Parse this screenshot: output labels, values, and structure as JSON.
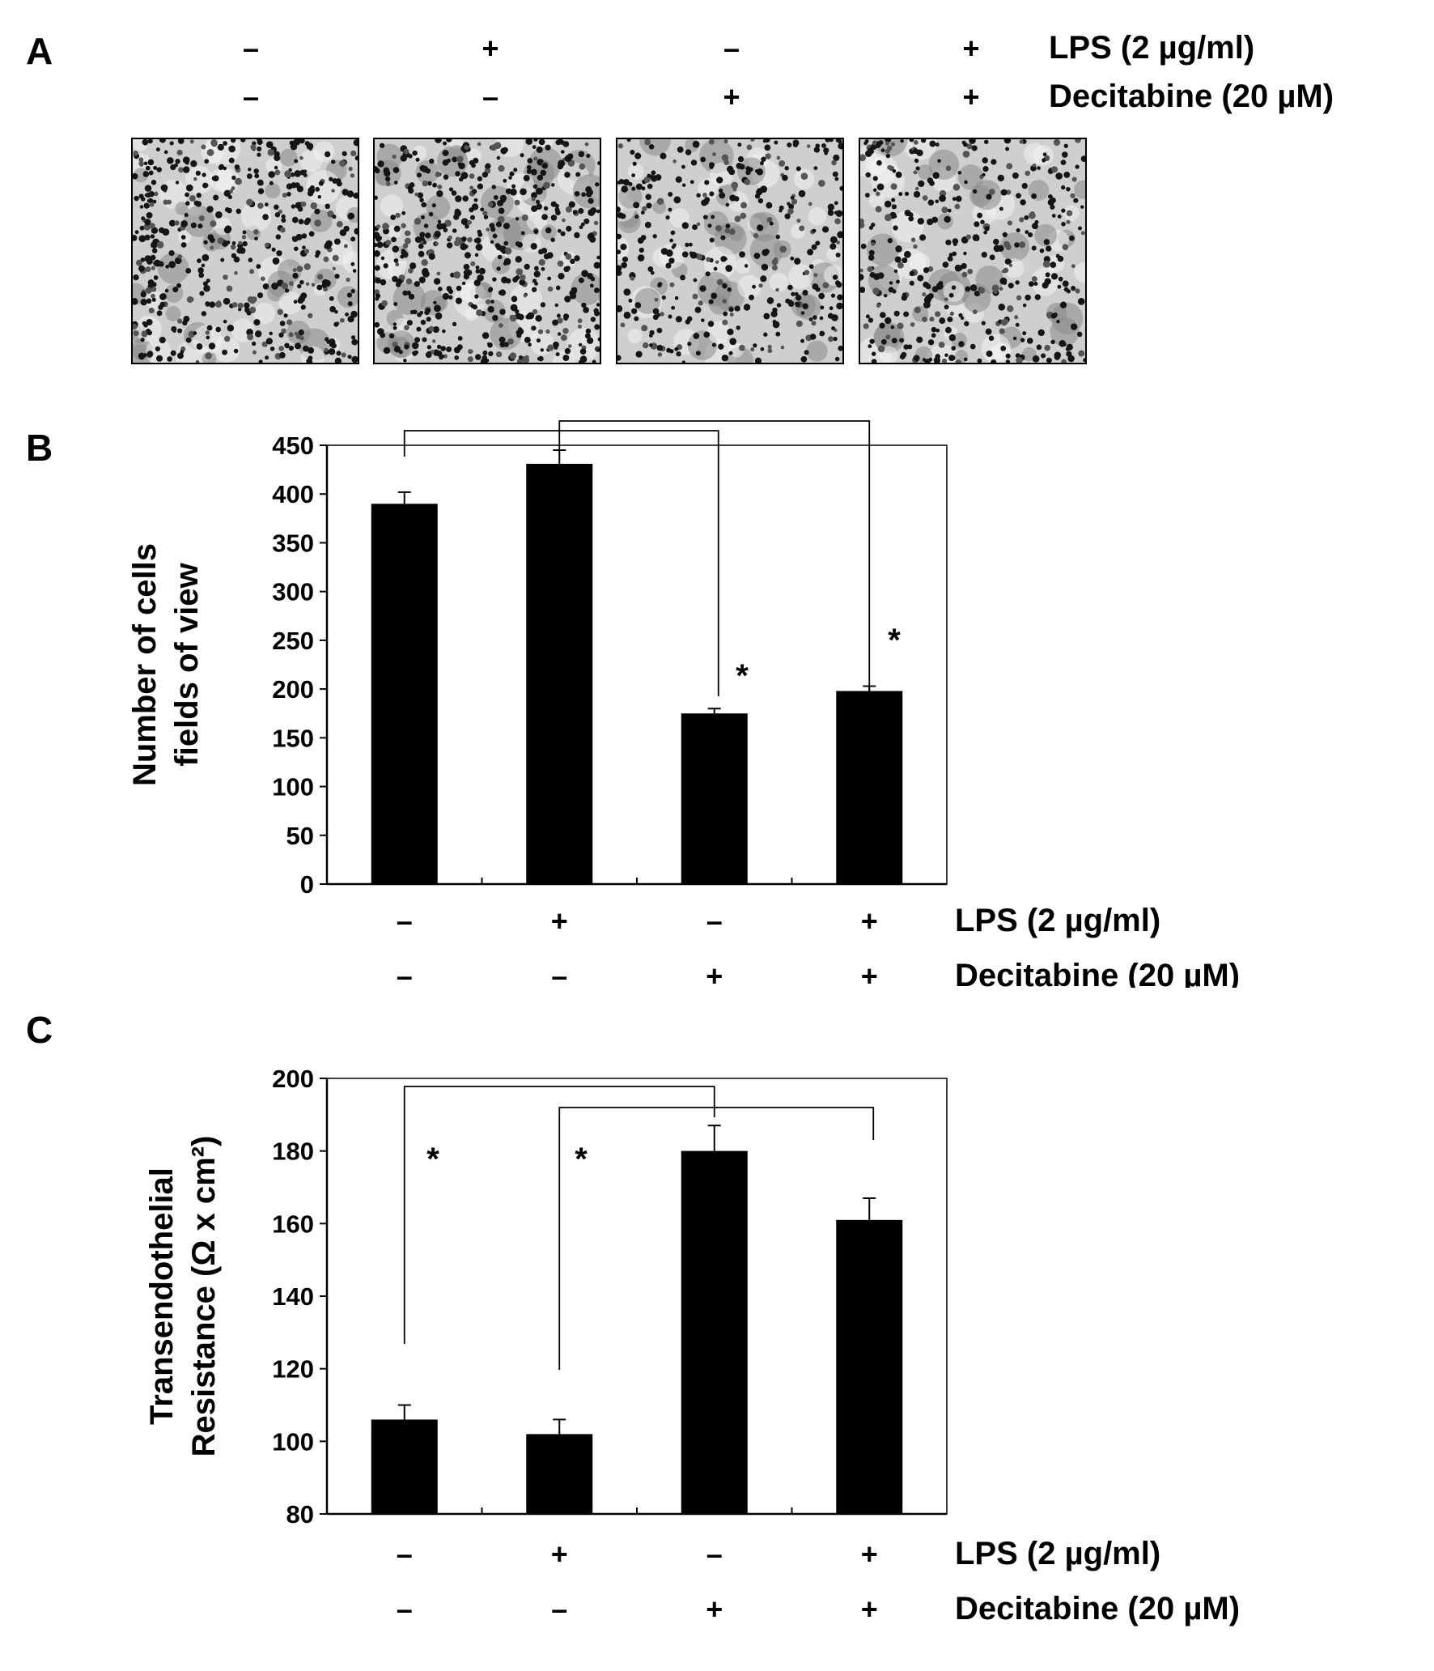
{
  "panels": [
    {
      "letter": "A"
    },
    {
      "letter": "B"
    },
    {
      "letter": "C"
    }
  ],
  "treatment_rows": [
    {
      "label": "LPS (2 µg/ml)",
      "signs": [
        "–",
        "+",
        "–",
        "+"
      ]
    },
    {
      "label": "Decitabine (20 µM)",
      "signs": [
        "–",
        "–",
        "+",
        "+"
      ]
    }
  ],
  "micrographs": [
    {
      "lps": "–",
      "decitabine": "–"
    },
    {
      "lps": "+",
      "decitabine": "–"
    },
    {
      "lps": "–",
      "decitabine": "+"
    },
    {
      "lps": "+",
      "decitabine": "+"
    }
  ],
  "significance_mark": "*",
  "chart_data": [
    {
      "panel": "B",
      "type": "bar",
      "categories": [
        "–/–",
        "+/–",
        "–/+",
        "+/+"
      ],
      "values": [
        390,
        431,
        175,
        198
      ],
      "errors": [
        12,
        14,
        5,
        5
      ],
      "ylabel": [
        "Number of cells",
        "fields of view"
      ],
      "ylim": [
        0,
        450
      ],
      "yticks": [
        0,
        50,
        100,
        150,
        200,
        250,
        300,
        350,
        400,
        450
      ],
      "bar_color": "#000000",
      "significance": [
        {
          "from": 0,
          "to": 2,
          "mark": "*"
        },
        {
          "from": 1,
          "to": 3,
          "mark": "*"
        }
      ]
    },
    {
      "panel": "C",
      "type": "bar",
      "categories": [
        "–/–",
        "+/–",
        "–/+",
        "+/+"
      ],
      "values": [
        106,
        102,
        180,
        161
      ],
      "errors": [
        4,
        4,
        7,
        6
      ],
      "ylabel": [
        "Transendothelial",
        "Resistance (Ω  x cm²)"
      ],
      "ylim": [
        80,
        200
      ],
      "yticks": [
        80,
        100,
        120,
        140,
        160,
        180,
        200
      ],
      "bar_color": "#000000",
      "significance": [
        {
          "from": 0,
          "to": 2,
          "mark": "*"
        },
        {
          "from": 1,
          "to": 3,
          "mark": "*"
        }
      ]
    }
  ]
}
